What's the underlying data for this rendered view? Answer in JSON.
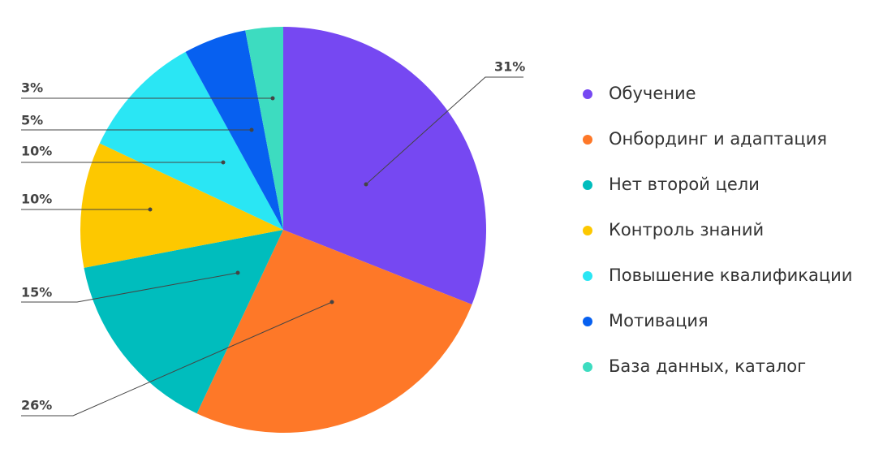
{
  "chart_data": {
    "type": "pie",
    "categories": [
      "Обучение",
      "Онбординг и адаптация",
      "Нет второй цели",
      "Контроль знаний",
      "Повышение квалификации",
      "Мотивация",
      "База данных, каталог"
    ],
    "values": [
      31,
      26,
      15,
      10,
      10,
      5,
      3
    ],
    "value_labels": [
      "31%",
      "26%",
      "15%",
      "10%",
      "10%",
      "5%",
      "3%"
    ],
    "colors": [
      "#7648f2",
      "#fe7828",
      "#00bdbd",
      "#fdc800",
      "#2ae6f4",
      "#0760f0",
      "#3ddcc0"
    ],
    "legend": "right"
  }
}
